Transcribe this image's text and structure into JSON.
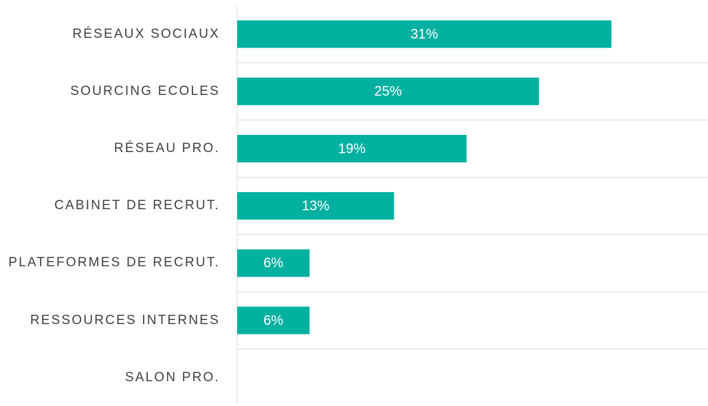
{
  "chart_data": {
    "type": "bar",
    "orientation": "horizontal",
    "categories": [
      "RÉSEAUX SOCIAUX",
      "SOURCING ECOLES",
      "RÉSEAU PRO.",
      "CABINET DE RECRUT.",
      "PLATEFORMES DE RECRUT.",
      "RESSOURCES INTERNES",
      "SALON PRO."
    ],
    "values": [
      31,
      25,
      19,
      13,
      6,
      6,
      0
    ],
    "value_labels": [
      "31%",
      "25%",
      "19%",
      "13%",
      "6%",
      "6%",
      null
    ],
    "color": "#00b0a0",
    "xlim": [
      0,
      39
    ]
  }
}
